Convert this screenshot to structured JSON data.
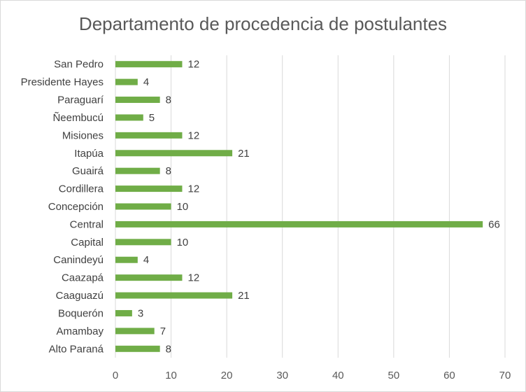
{
  "chart_data": {
    "type": "bar",
    "orientation": "horizontal",
    "title": "Departamento de procedencia de postulantes",
    "categories": [
      "San Pedro",
      "Presidente Hayes",
      "Paraguarí",
      "Ñeembucú",
      "Misiones",
      "Itapúa",
      "Guairá",
      "Cordillera",
      "Concepción",
      "Central",
      "Capital",
      "Canindeyú",
      "Caazapá",
      "Caaguazú",
      "Boquerón",
      "Amambay",
      "Alto Paraná"
    ],
    "values": [
      12,
      4,
      8,
      5,
      12,
      21,
      8,
      12,
      10,
      66,
      10,
      4,
      12,
      21,
      3,
      7,
      8
    ],
    "xlim": [
      0,
      70
    ],
    "xticks": [
      0,
      10,
      20,
      30,
      40,
      50,
      60,
      70
    ],
    "grid": "vertical",
    "legend": "none",
    "data_labels": true,
    "bar_color": "#70ad47",
    "grid_color": "#d9d9d9"
  }
}
